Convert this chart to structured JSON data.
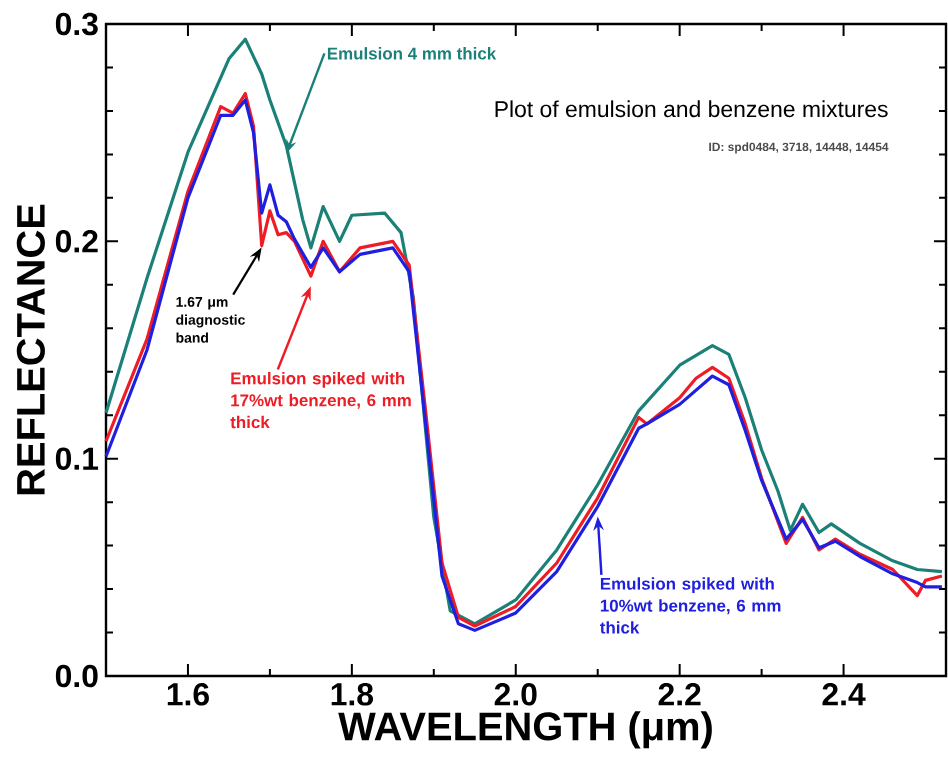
{
  "chart_data": {
    "type": "line",
    "title": "Plot of emulsion and benzene mixtures",
    "subtitle": "ID: spd0484, 3718, 14448, 14454",
    "xlabel": "WAVELENGTH (μm)",
    "ylabel": "REFLECTANCE",
    "xlim": [
      1.5,
      2.525
    ],
    "ylim": [
      0,
      0.3
    ],
    "xticks": [
      1.6,
      1.8,
      {
        "value": 2.0,
        "label": "2.0"
      },
      2.2,
      2.4
    ],
    "yticks": [
      {
        "value": 0.0,
        "label": "0.0"
      },
      0.1,
      0.2,
      0.3
    ],
    "grid": false,
    "legend": false,
    "marker": "none",
    "line_style": "solid",
    "annotations": [
      {
        "text": "1.67 μm diagnostic band",
        "x": 1.69,
        "y": 0.2
      }
    ],
    "series": [
      {
        "name": "Emulsion 4 mm thick",
        "color": "#1a8078",
        "x": [
          1.5,
          1.55,
          1.6,
          1.65,
          1.67,
          1.69,
          1.7,
          1.72,
          1.74,
          1.75,
          1.765,
          1.785,
          1.8,
          1.84,
          1.86,
          1.875,
          1.89,
          1.9,
          1.92,
          1.95,
          2.0,
          2.05,
          2.1,
          2.15,
          2.2,
          2.24,
          2.26,
          2.28,
          2.3,
          2.32,
          2.335,
          2.35,
          2.37,
          2.385,
          2.42,
          2.46,
          2.49,
          2.52
        ],
        "values": [
          0.121,
          0.183,
          0.241,
          0.284,
          0.293,
          0.277,
          0.265,
          0.244,
          0.21,
          0.197,
          0.216,
          0.2,
          0.212,
          0.213,
          0.204,
          0.174,
          0.113,
          0.073,
          0.03,
          0.024,
          0.035,
          0.058,
          0.088,
          0.122,
          0.143,
          0.152,
          0.148,
          0.128,
          0.104,
          0.085,
          0.067,
          0.079,
          0.066,
          0.07,
          0.061,
          0.053,
          0.049,
          0.048
        ]
      },
      {
        "name": "Emulsion spiked with 17%wt benzene, 6 mm thick",
        "color": "#ee1c24",
        "x": [
          1.5,
          1.55,
          1.6,
          1.64,
          1.655,
          1.67,
          1.68,
          1.69,
          1.7,
          1.71,
          1.72,
          1.73,
          1.75,
          1.765,
          1.785,
          1.81,
          1.85,
          1.87,
          1.89,
          1.91,
          1.93,
          1.95,
          2.0,
          2.05,
          2.1,
          2.15,
          2.16,
          2.2,
          2.22,
          2.24,
          2.26,
          2.28,
          2.3,
          2.33,
          2.35,
          2.37,
          2.39,
          2.42,
          2.46,
          2.49,
          2.5,
          2.52
        ],
        "values": [
          0.108,
          0.155,
          0.223,
          0.262,
          0.259,
          0.268,
          0.253,
          0.198,
          0.214,
          0.203,
          0.204,
          0.2,
          0.184,
          0.2,
          0.186,
          0.197,
          0.2,
          0.189,
          0.122,
          0.052,
          0.027,
          0.023,
          0.032,
          0.052,
          0.082,
          0.119,
          0.116,
          0.128,
          0.137,
          0.142,
          0.137,
          0.116,
          0.091,
          0.061,
          0.073,
          0.058,
          0.063,
          0.056,
          0.049,
          0.037,
          0.044,
          0.046
        ]
      },
      {
        "name": "Emulsion spiked with 10%wt benzene, 6 mm thick",
        "color": "#1f1fe0",
        "x": [
          1.5,
          1.55,
          1.6,
          1.64,
          1.655,
          1.67,
          1.68,
          1.69,
          1.7,
          1.71,
          1.72,
          1.73,
          1.75,
          1.765,
          1.785,
          1.81,
          1.85,
          1.87,
          1.89,
          1.91,
          1.93,
          1.95,
          2.0,
          2.05,
          2.1,
          2.15,
          2.16,
          2.2,
          2.24,
          2.26,
          2.28,
          2.3,
          2.33,
          2.35,
          2.37,
          2.39,
          2.42,
          2.46,
          2.49,
          2.5,
          2.52
        ],
        "values": [
          0.101,
          0.15,
          0.22,
          0.258,
          0.258,
          0.265,
          0.25,
          0.213,
          0.226,
          0.212,
          0.209,
          0.201,
          0.188,
          0.197,
          0.186,
          0.194,
          0.197,
          0.186,
          0.116,
          0.046,
          0.024,
          0.021,
          0.029,
          0.048,
          0.078,
          0.114,
          0.116,
          0.125,
          0.138,
          0.134,
          0.113,
          0.09,
          0.063,
          0.072,
          0.059,
          0.062,
          0.055,
          0.047,
          0.043,
          0.041,
          0.041
        ]
      }
    ]
  }
}
